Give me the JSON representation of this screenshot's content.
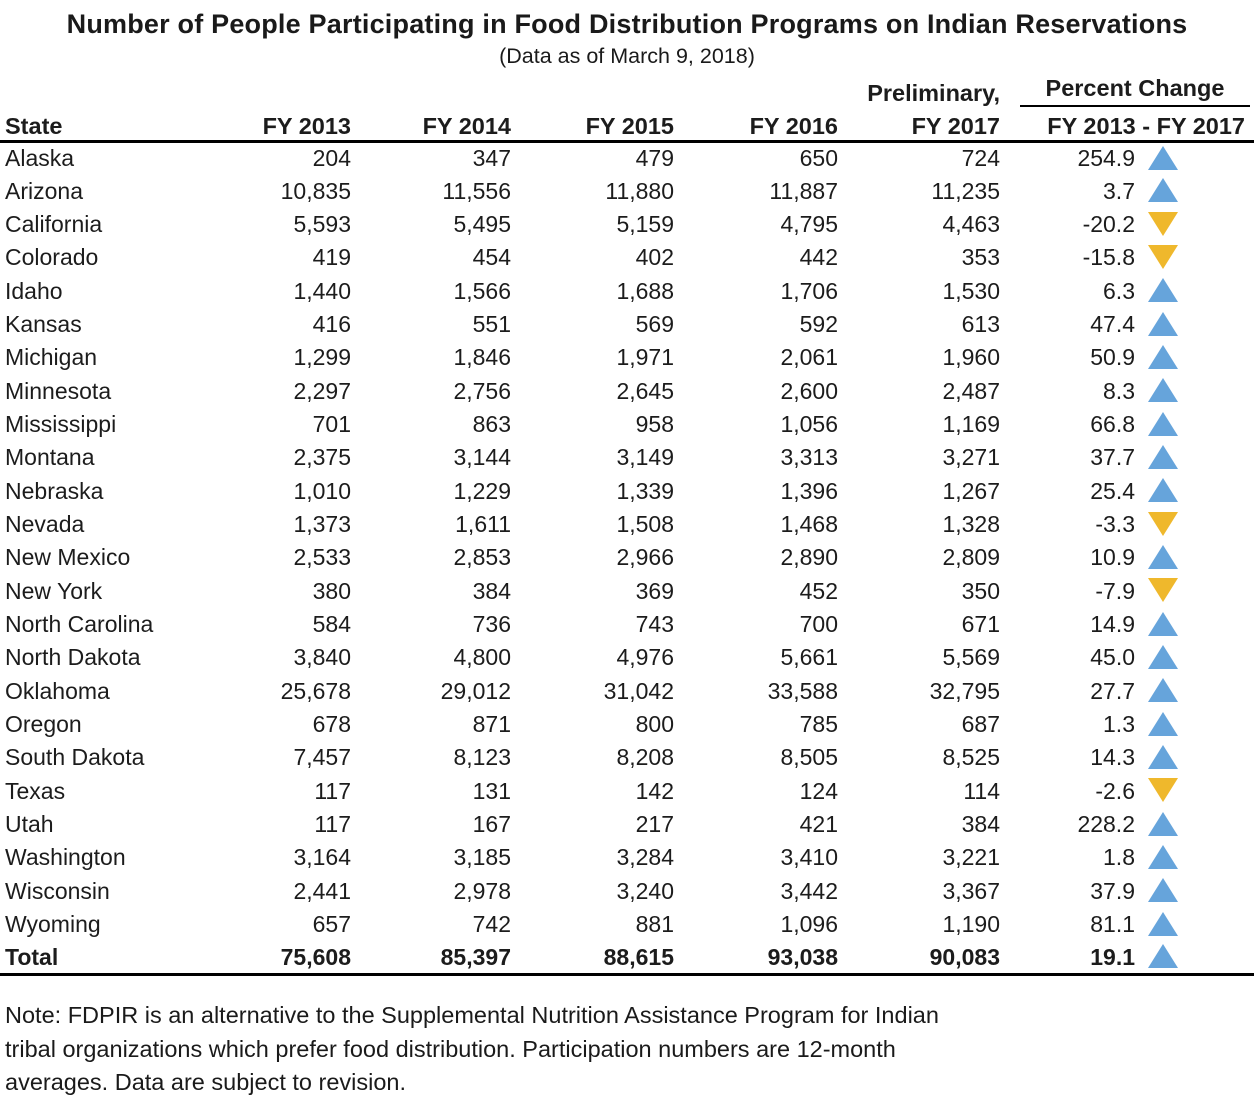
{
  "title": "Number of People Participating in Food Distribution Programs on Indian Reservations",
  "subtitle": "(Data as of March 9, 2018)",
  "table_header": {
    "state": "State",
    "fy2013": "FY 2013",
    "fy2014": "FY 2014",
    "fy2015": "FY 2015",
    "fy2016": "FY 2016",
    "preliminary": "Preliminary,",
    "fy2017": "FY 2017",
    "percent_change": "Percent Change",
    "percent_range": "FY 2013 - FY 2017"
  },
  "chart_data": {
    "type": "table",
    "title": "Number of People Participating in Food Distribution Programs on Indian Reservations (Data as of March 9, 2018)",
    "columns": [
      "State",
      "FY 2013",
      "FY 2014",
      "FY 2015",
      "FY 2016",
      "Preliminary, FY 2017",
      "Percent Change FY 2013 - FY 2017"
    ],
    "trend_colors": {
      "up": "#66A4DB",
      "down": "#EFB82C"
    },
    "rows": [
      {
        "state": "Alaska",
        "fy2013": 204,
        "fy2014": 347,
        "fy2015": 479,
        "fy2016": 650,
        "fy2017": 724,
        "pct": 254.9,
        "trend": "up",
        "is_total": false
      },
      {
        "state": "Arizona",
        "fy2013": 10835,
        "fy2014": 11556,
        "fy2015": 11880,
        "fy2016": 11887,
        "fy2017": 11235,
        "pct": 3.7,
        "trend": "up",
        "is_total": false
      },
      {
        "state": "California",
        "fy2013": 5593,
        "fy2014": 5495,
        "fy2015": 5159,
        "fy2016": 4795,
        "fy2017": 4463,
        "pct": -20.2,
        "trend": "down",
        "is_total": false
      },
      {
        "state": "Colorado",
        "fy2013": 419,
        "fy2014": 454,
        "fy2015": 402,
        "fy2016": 442,
        "fy2017": 353,
        "pct": -15.8,
        "trend": "down",
        "is_total": false
      },
      {
        "state": "Idaho",
        "fy2013": 1440,
        "fy2014": 1566,
        "fy2015": 1688,
        "fy2016": 1706,
        "fy2017": 1530,
        "pct": 6.3,
        "trend": "up",
        "is_total": false
      },
      {
        "state": "Kansas",
        "fy2013": 416,
        "fy2014": 551,
        "fy2015": 569,
        "fy2016": 592,
        "fy2017": 613,
        "pct": 47.4,
        "trend": "up",
        "is_total": false
      },
      {
        "state": "Michigan",
        "fy2013": 1299,
        "fy2014": 1846,
        "fy2015": 1971,
        "fy2016": 2061,
        "fy2017": 1960,
        "pct": 50.9,
        "trend": "up",
        "is_total": false
      },
      {
        "state": "Minnesota",
        "fy2013": 2297,
        "fy2014": 2756,
        "fy2015": 2645,
        "fy2016": 2600,
        "fy2017": 2487,
        "pct": 8.3,
        "trend": "up",
        "is_total": false
      },
      {
        "state": "Mississippi",
        "fy2013": 701,
        "fy2014": 863,
        "fy2015": 958,
        "fy2016": 1056,
        "fy2017": 1169,
        "pct": 66.8,
        "trend": "up",
        "is_total": false
      },
      {
        "state": "Montana",
        "fy2013": 2375,
        "fy2014": 3144,
        "fy2015": 3149,
        "fy2016": 3313,
        "fy2017": 3271,
        "pct": 37.7,
        "trend": "up",
        "is_total": false
      },
      {
        "state": "Nebraska",
        "fy2013": 1010,
        "fy2014": 1229,
        "fy2015": 1339,
        "fy2016": 1396,
        "fy2017": 1267,
        "pct": 25.4,
        "trend": "up",
        "is_total": false
      },
      {
        "state": "Nevada",
        "fy2013": 1373,
        "fy2014": 1611,
        "fy2015": 1508,
        "fy2016": 1468,
        "fy2017": 1328,
        "pct": -3.3,
        "trend": "down",
        "is_total": false
      },
      {
        "state": "New Mexico",
        "fy2013": 2533,
        "fy2014": 2853,
        "fy2015": 2966,
        "fy2016": 2890,
        "fy2017": 2809,
        "pct": 10.9,
        "trend": "up",
        "is_total": false
      },
      {
        "state": "New York",
        "fy2013": 380,
        "fy2014": 384,
        "fy2015": 369,
        "fy2016": 452,
        "fy2017": 350,
        "pct": -7.9,
        "trend": "down",
        "is_total": false
      },
      {
        "state": "North Carolina",
        "fy2013": 584,
        "fy2014": 736,
        "fy2015": 743,
        "fy2016": 700,
        "fy2017": 671,
        "pct": 14.9,
        "trend": "up",
        "is_total": false
      },
      {
        "state": "North Dakota",
        "fy2013": 3840,
        "fy2014": 4800,
        "fy2015": 4976,
        "fy2016": 5661,
        "fy2017": 5569,
        "pct": 45.0,
        "trend": "up",
        "is_total": false
      },
      {
        "state": "Oklahoma",
        "fy2013": 25678,
        "fy2014": 29012,
        "fy2015": 31042,
        "fy2016": 33588,
        "fy2017": 32795,
        "pct": 27.7,
        "trend": "up",
        "is_total": false
      },
      {
        "state": "Oregon",
        "fy2013": 678,
        "fy2014": 871,
        "fy2015": 800,
        "fy2016": 785,
        "fy2017": 687,
        "pct": 1.3,
        "trend": "up",
        "is_total": false
      },
      {
        "state": "South Dakota",
        "fy2013": 7457,
        "fy2014": 8123,
        "fy2015": 8208,
        "fy2016": 8505,
        "fy2017": 8525,
        "pct": 14.3,
        "trend": "up",
        "is_total": false
      },
      {
        "state": "Texas",
        "fy2013": 117,
        "fy2014": 131,
        "fy2015": 142,
        "fy2016": 124,
        "fy2017": 114,
        "pct": -2.6,
        "trend": "down",
        "is_total": false
      },
      {
        "state": "Utah",
        "fy2013": 117,
        "fy2014": 167,
        "fy2015": 217,
        "fy2016": 421,
        "fy2017": 384,
        "pct": 228.2,
        "trend": "up",
        "is_total": false
      },
      {
        "state": "Washington",
        "fy2013": 3164,
        "fy2014": 3185,
        "fy2015": 3284,
        "fy2016": 3410,
        "fy2017": 3221,
        "pct": 1.8,
        "trend": "up",
        "is_total": false
      },
      {
        "state": "Wisconsin",
        "fy2013": 2441,
        "fy2014": 2978,
        "fy2015": 3240,
        "fy2016": 3442,
        "fy2017": 3367,
        "pct": 37.9,
        "trend": "up",
        "is_total": false
      },
      {
        "state": "Wyoming",
        "fy2013": 657,
        "fy2014": 742,
        "fy2015": 881,
        "fy2016": 1096,
        "fy2017": 1190,
        "pct": 81.1,
        "trend": "up",
        "is_total": false
      },
      {
        "state": "Total",
        "fy2013": 75608,
        "fy2014": 85397,
        "fy2015": 88615,
        "fy2016": 93038,
        "fy2017": 90083,
        "pct": 19.1,
        "trend": "up",
        "is_total": true
      }
    ]
  },
  "note_lines": [
    "Note: FDPIR is an alternative to the Supplemental Nutrition Assistance Program for Indian",
    "tribal organizations which prefer food distribution. Participation numbers are 12-month",
    "averages. Data are subject to revision."
  ]
}
